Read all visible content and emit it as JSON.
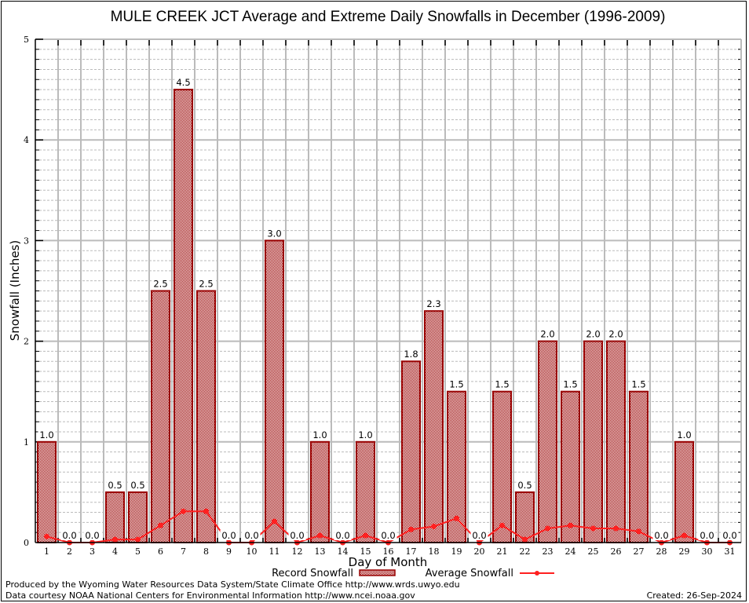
{
  "chart_data": {
    "type": "bar",
    "title": "MULE CREEK JCT Average and Extreme Daily Snowfalls in December (1996-2009)",
    "xlabel": "Day of Month",
    "ylabel": "Snowfall (Inches)",
    "ylim": [
      0,
      5
    ],
    "yticks": [
      "0",
      "1",
      "2",
      "3",
      "4",
      "5"
    ],
    "grid": true,
    "categories": [
      "1",
      "2",
      "3",
      "4",
      "5",
      "6",
      "7",
      "8",
      "9",
      "10",
      "11",
      "12",
      "13",
      "14",
      "15",
      "16",
      "17",
      "18",
      "19",
      "20",
      "21",
      "22",
      "23",
      "24",
      "25",
      "26",
      "27",
      "28",
      "29",
      "30",
      "31"
    ],
    "series": [
      {
        "name": "Record Snowfall",
        "type": "bar",
        "color": "#990000",
        "values": [
          1.0,
          0.0,
          0.0,
          0.5,
          0.5,
          2.5,
          4.5,
          2.5,
          0.0,
          0.0,
          3.0,
          0.0,
          1.0,
          0.0,
          1.0,
          0.0,
          1.8,
          2.3,
          1.5,
          0.0,
          1.5,
          0.5,
          2.0,
          1.5,
          2.0,
          2.0,
          1.5,
          0.0,
          1.0,
          0.0,
          0.0
        ],
        "labels": [
          "1.0",
          "0.0",
          "0.0",
          "0.5",
          "0.5",
          "2.5",
          "4.5",
          "2.5",
          "0.0",
          "0.0",
          "3.0",
          "0.0",
          "1.0",
          "0.0",
          "1.0",
          "0.0",
          "1.8",
          "2.3",
          "1.5",
          "0.0",
          "1.5",
          "0.5",
          "2.0",
          "1.5",
          "2.0",
          "2.0",
          "1.5",
          "0.0",
          "1.0",
          "0.0",
          "0.0"
        ]
      },
      {
        "name": "Average Snowfall",
        "type": "line",
        "color": "#ff2020",
        "values": [
          0.06,
          0,
          0,
          0.03,
          0.03,
          0.17,
          0.31,
          0.31,
          0,
          0,
          0.21,
          0,
          0.07,
          0,
          0.07,
          0,
          0.13,
          0.16,
          0.24,
          0,
          0.17,
          0.03,
          0.14,
          0.17,
          0.14,
          0.14,
          0.11,
          0,
          0.07,
          0,
          0
        ]
      }
    ],
    "legend": "bottom"
  },
  "footer": {
    "produced_by": "Produced by the Wyoming Water Resources Data System/State Climate Office http://www.wrds.uwyo.edu",
    "data_courtesy": "Data courtesy NOAA National Centers for Environmental Information http://www.ncei.noaa.gov",
    "created": "Created: 26-Sep-2024"
  }
}
